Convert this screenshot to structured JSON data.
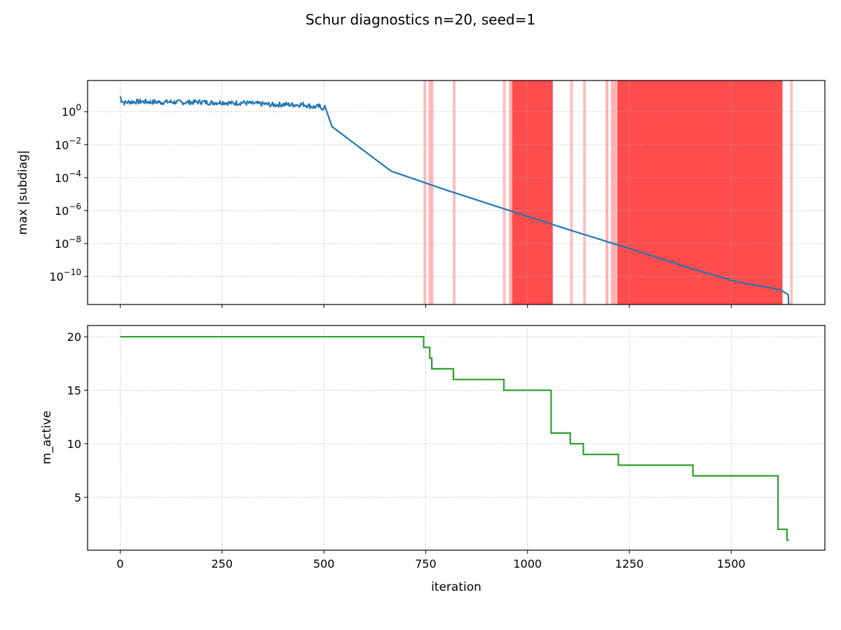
{
  "title": "Schur diagnostics n=20, seed=1",
  "chart_data": [
    {
      "type": "line",
      "ylabel": "max |subdiag|",
      "xlabel": "",
      "yscale": "log",
      "xlim": [
        -80,
        1730
      ],
      "ylim_log10": [
        -11.7,
        1.9
      ],
      "yticks": [
        {
          "base": "10",
          "exp": "0",
          "value_log10": 0
        },
        {
          "base": "10",
          "exp": "−2",
          "value_log10": -2
        },
        {
          "base": "10",
          "exp": "−4",
          "value_log10": -4
        },
        {
          "base": "10",
          "exp": "−6",
          "value_log10": -6
        },
        {
          "base": "10",
          "exp": "−8",
          "value_log10": -8
        },
        {
          "base": "10",
          "exp": "−10",
          "value_log10": -10
        }
      ],
      "xticks": [
        0,
        250,
        500,
        750,
        1000,
        1250,
        1500
      ],
      "grid": true,
      "series": [
        {
          "color": "#1f77b4",
          "x": [
            0,
            3,
            10,
            25,
            50,
            75,
            100,
            125,
            150,
            175,
            200,
            225,
            250,
            275,
            300,
            325,
            350,
            375,
            400,
            425,
            450,
            475,
            490,
            500,
            502,
            520,
            665,
            800,
            950,
            1100,
            1250,
            1400,
            1510,
            1620,
            1640,
            1641
          ],
          "y_log10": [
            0.95,
            0.7,
            0.55,
            0.6,
            0.62,
            0.6,
            0.58,
            0.6,
            0.57,
            0.58,
            0.6,
            0.55,
            0.58,
            0.52,
            0.56,
            0.5,
            0.48,
            0.42,
            0.45,
            0.42,
            0.45,
            0.3,
            0.32,
            0.2,
            0.38,
            -0.9,
            -3.6,
            -4.75,
            -5.95,
            -7.15,
            -8.3,
            -9.5,
            -10.3,
            -10.8,
            -11.1,
            -11.7
          ]
        }
      ],
      "shaded_x": [
        748,
        763,
        820,
        943,
        960,
        1065,
        1107,
        1140,
        1193,
        1222,
        1626,
        1649
      ],
      "shaded_lines": [
        {
          "x": 748,
          "alpha": 0.25
        },
        {
          "x": 760,
          "alpha": 0.25
        },
        {
          "x": 766,
          "alpha": 0.25
        },
        {
          "x": 820,
          "alpha": 0.25
        },
        {
          "x": 943,
          "alpha": 0.25
        },
        {
          "x": 958,
          "alpha": 0.3
        },
        {
          "x": 1108,
          "alpha": 0.25
        },
        {
          "x": 1140,
          "alpha": 0.25
        },
        {
          "x": 1195,
          "alpha": 0.3
        },
        {
          "x": 1208,
          "alpha": 0.3
        },
        {
          "x": 1215,
          "alpha": 0.3
        },
        {
          "x": 1648,
          "alpha": 0.25
        }
      ],
      "shaded_bands": [
        {
          "x0": 962,
          "x1": 1062,
          "alpha": 0.7
        },
        {
          "x0": 1220,
          "x1": 1626,
          "alpha": 0.7
        }
      ],
      "shade_color": "#ff0000"
    },
    {
      "type": "line",
      "ylabel": "m_active",
      "xlabel": "iteration",
      "xlim": [
        -80,
        1730
      ],
      "ylim": [
        0.05,
        21.05
      ],
      "yticks": [
        5,
        10,
        15,
        20
      ],
      "xticks": [
        0,
        250,
        500,
        750,
        1000,
        1250,
        1500
      ],
      "grid": true,
      "series": [
        {
          "color": "#2ca02c",
          "step": true,
          "x": [
            0,
            745,
            760,
            765,
            818,
            942,
            1058,
            1105,
            1137,
            1223,
            1406,
            1615,
            1637,
            1642
          ],
          "y": [
            20,
            19,
            18,
            17,
            16,
            15,
            11,
            10,
            9,
            8,
            7,
            2,
            1,
            1
          ]
        }
      ]
    }
  ]
}
